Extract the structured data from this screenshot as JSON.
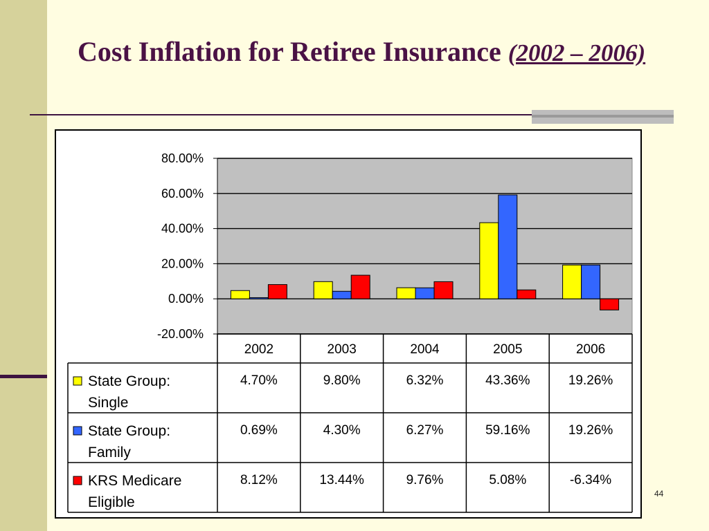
{
  "slide": {
    "title_main": "Cost Inflation for Retiree Insurance",
    "title_sub": "(2002 – 2006)",
    "page_number": "44"
  },
  "colors": {
    "background": "#fffde1",
    "sidebar": "#d6d29b",
    "title": "#4a1245",
    "plot_area": "#c0c0c0"
  },
  "chart_data": {
    "type": "bar",
    "title": "",
    "xlabel": "",
    "ylabel": "",
    "categories": [
      "2002",
      "2003",
      "2004",
      "2005",
      "2006"
    ],
    "ylim": [
      -0.2,
      0.8
    ],
    "yticks": [
      -0.2,
      0.0,
      0.2,
      0.4,
      0.6,
      0.8
    ],
    "ytick_labels": [
      "-20.00%",
      "0.00%",
      "20.00%",
      "40.00%",
      "60.00%",
      "80.00%"
    ],
    "grid": true,
    "legend": "data-table",
    "series": [
      {
        "name_lines": [
          "State Group:",
          "Single"
        ],
        "color": "#ffff00",
        "values": [
          0.047,
          0.098,
          0.0632,
          0.4336,
          0.1926
        ],
        "labels": [
          "4.70%",
          "9.80%",
          "6.32%",
          "43.36%",
          "19.26%"
        ]
      },
      {
        "name_lines": [
          "State Group:",
          "Family"
        ],
        "color": "#3366ff",
        "values": [
          0.0069,
          0.043,
          0.0627,
          0.5916,
          0.1926
        ],
        "labels": [
          "0.69%",
          "4.30%",
          "6.27%",
          "59.16%",
          "19.26%"
        ]
      },
      {
        "name_lines": [
          "KRS Medicare",
          "Eligible"
        ],
        "color": "#ff0000",
        "values": [
          0.0812,
          0.1344,
          0.0976,
          0.0508,
          -0.0634
        ],
        "labels": [
          "8.12%",
          "13.44%",
          "9.76%",
          "5.08%",
          "-6.34%"
        ]
      }
    ]
  }
}
